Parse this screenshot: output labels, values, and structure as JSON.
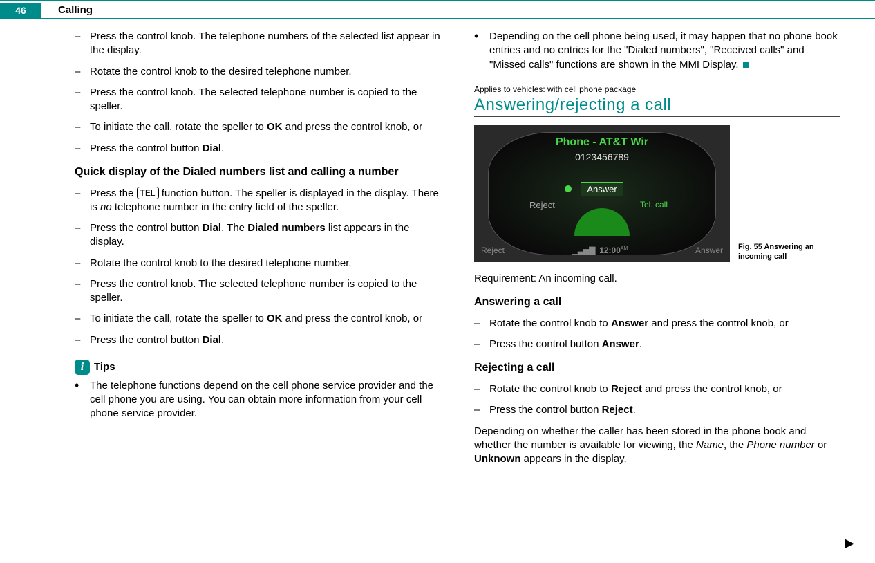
{
  "page_number": "46",
  "section": "Calling",
  "colors": {
    "accent": "#008b8b",
    "text": "#000000",
    "screen_bg": "#2a2a2a",
    "screen_green": "#4bd64b"
  },
  "left": {
    "items1": [
      "Press the control knob. The telephone numbers of the selected list appear in the display.",
      "Rotate the control knob to the desired telephone number.",
      "Press the control knob. The selected telephone number is copied to the speller."
    ],
    "item_ok_pre": "To initiate the call, rotate the speller to ",
    "item_ok_bold": "OK",
    "item_ok_post": " and press the control knob, or",
    "item_dial_pre": "Press the control button ",
    "item_dial_bold": "Dial",
    "subhead_pre": "Quick display of the ",
    "subhead_bold": "Dialed numbers",
    "subhead_post": " list and calling a number",
    "tel_pre": "Press the ",
    "tel_key": "TEL",
    "tel_mid": " function button. The speller is displayed in the display. There is ",
    "tel_italic": "no",
    "tel_post": " telephone number in the entry field of the speller.",
    "dial_list_pre": "Press the control button ",
    "dial_list_b1": "Dial",
    "dial_list_mid": ". The ",
    "dial_list_b2": "Dialed numbers",
    "dial_list_post": " list appears in the display.",
    "items2": [
      "Rotate the control knob to the desired telephone number.",
      "Press the control knob. The selected telephone number is copied to the speller."
    ],
    "tips_label": "Tips",
    "tip1": "The telephone functions depend on the cell phone service provider and the cell phone you are using. You can obtain more information from your cell phone service provider."
  },
  "right": {
    "tip2": "Depending on the cell phone being used, it may happen that no phone book entries and no entries for the \"Dialed numbers\", \"Received calls\" and \"Missed calls\" functions are shown in the MMI Display.",
    "applies": "Applies to vehicles: with cell phone package",
    "heading": "Answering/rejecting a call",
    "screenshot": {
      "title": "Phone - AT&T Wir",
      "number": "0123456789",
      "answer": "Answer",
      "reject_opt": "Reject",
      "tel_call": "Tel. call",
      "bottom_left": "Reject",
      "bottom_time": "12:00",
      "bottom_right": "Answer"
    },
    "fig_caption": "Fig. 55   Answering an incoming call",
    "requirement": "Requirement: An incoming call.",
    "sub_answer": "Answering a call",
    "ans_pre": "Rotate the control knob to ",
    "ans_bold": "Answer",
    "ans_post": " and press the control knob, or",
    "ans2_pre": "Press the control button ",
    "ans2_bold": "Answer",
    "sub_reject": "Rejecting a call",
    "rej_pre": "Rotate the control knob to ",
    "rej_bold": "Reject",
    "rej_post": " and press the control knob, or",
    "rej2_pre": "Press the control button ",
    "rej2_bold": "Reject",
    "closing_pre": "Depending on whether the caller has been stored in the phone book and whether the number is available for viewing, the ",
    "closing_i1": "Name",
    "closing_mid1": ", the ",
    "closing_i2": "Phone number",
    "closing_mid2": " or ",
    "closing_b": "Unknown",
    "closing_post": " appears in the display."
  }
}
